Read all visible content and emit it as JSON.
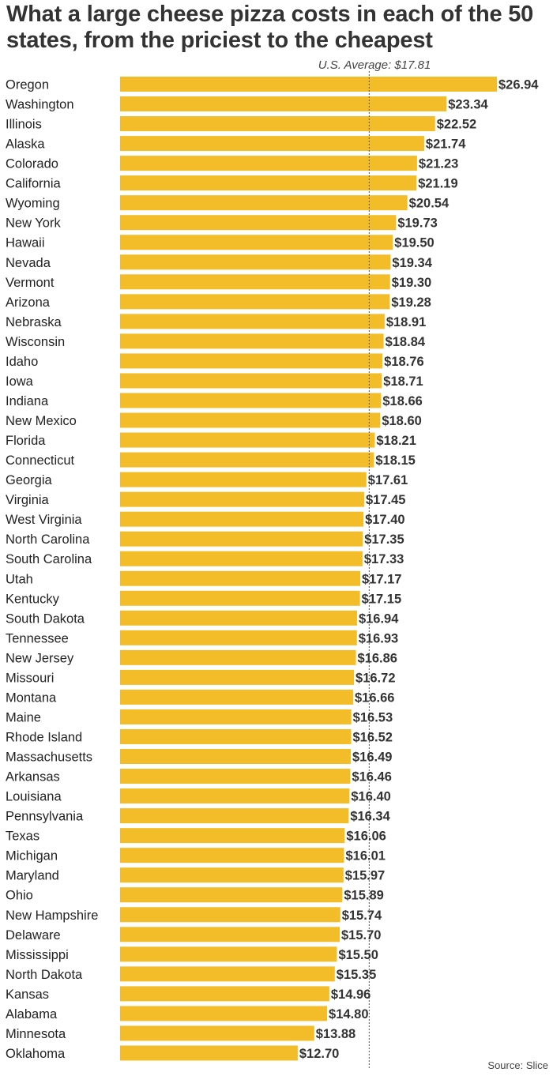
{
  "chart_data": {
    "type": "bar",
    "orientation": "horizontal",
    "title": "What a large cheese pizza costs in each of the 50 states, from the priciest to the cheapest",
    "reference_line": {
      "label": "U.S. Average: $17.81",
      "value": 17.81,
      "style": "dotted"
    },
    "categories": [
      "Oregon",
      "Washington",
      "Illinois",
      "Alaska",
      "Colorado",
      "California",
      "Wyoming",
      "New York",
      "Hawaii",
      "Nevada",
      "Vermont",
      "Arizona",
      "Nebraska",
      "Wisconsin",
      "Idaho",
      "Iowa",
      "Indiana",
      "New Mexico",
      "Florida",
      "Connecticut",
      "Georgia",
      "Virginia",
      "West Virginia",
      "North Carolina",
      "South Carolina",
      "Utah",
      "Kentucky",
      "South Dakota",
      "Tennessee",
      "New Jersey",
      "Missouri",
      "Montana",
      "Maine",
      "Rhode Island",
      "Massachusetts",
      "Arkansas",
      "Louisiana",
      "Pennsylvania",
      "Texas",
      "Michigan",
      "Maryland",
      "Ohio",
      "New Hampshire",
      "Delaware",
      "Mississippi",
      "North Dakota",
      "Kansas",
      "Alabama",
      "Minnesota",
      "Oklahoma"
    ],
    "values": [
      26.94,
      23.34,
      22.52,
      21.74,
      21.23,
      21.19,
      20.54,
      19.73,
      19.5,
      19.34,
      19.3,
      19.28,
      18.91,
      18.84,
      18.76,
      18.71,
      18.66,
      18.6,
      18.21,
      18.15,
      17.61,
      17.45,
      17.4,
      17.35,
      17.33,
      17.17,
      17.15,
      16.94,
      16.93,
      16.86,
      16.72,
      16.66,
      16.53,
      16.52,
      16.49,
      16.46,
      16.4,
      16.34,
      16.06,
      16.01,
      15.97,
      15.89,
      15.74,
      15.7,
      15.5,
      15.35,
      14.96,
      14.8,
      13.88,
      12.7
    ],
    "value_labels": [
      "$26.94",
      "$23.34",
      "$22.52",
      "$21.74",
      "$21.23",
      "$21.19",
      "$20.54",
      "$19.73",
      "$19.50",
      "$19.34",
      "$19.30",
      "$19.28",
      "$18.91",
      "$18.84",
      "$18.76",
      "$18.71",
      "$18.66",
      "$18.60",
      "$18.21",
      "$18.15",
      "$17.61",
      "$17.45",
      "$17.40",
      "$17.35",
      "$17.33",
      "$17.17",
      "$17.15",
      "$16.94",
      "$16.93",
      "$16.86",
      "$16.72",
      "$16.66",
      "$16.53",
      "$16.52",
      "$16.49",
      "$16.46",
      "$16.40",
      "$16.34",
      "$16.06",
      "$16.01",
      "$15.97",
      "$15.89",
      "$15.74",
      "$15.70",
      "$15.50",
      "$15.35",
      "$14.96",
      "$14.80",
      "$13.88",
      "$12.70"
    ],
    "xlim": [
      0,
      26.94
    ],
    "grid": false,
    "legend": "none",
    "bar_color": "#f2bd28",
    "reference_line_color": "#555555",
    "source": "Source: Slice"
  }
}
